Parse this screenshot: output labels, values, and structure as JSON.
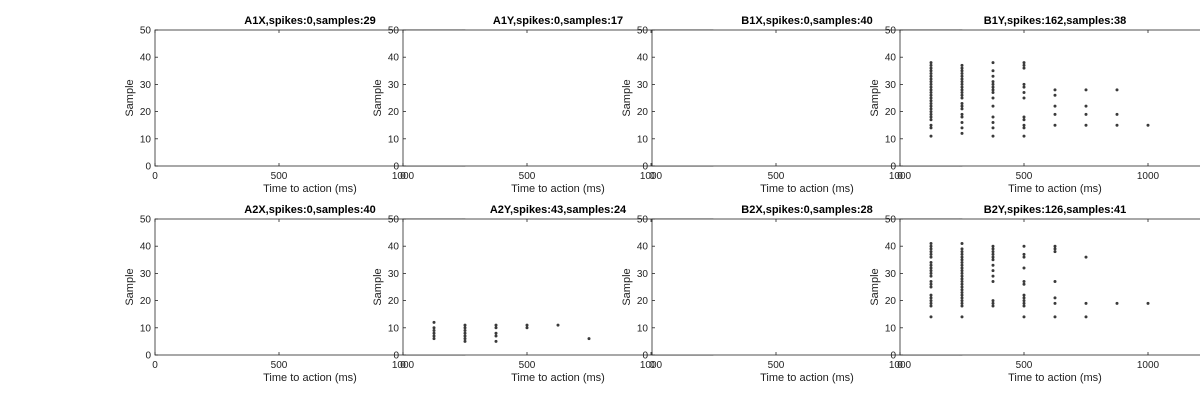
{
  "chart_data": [
    {
      "type": "scatter",
      "title": "A1X,spikes:0,samples:29",
      "xlabel": "Time to action (ms)",
      "ylabel": "Sample",
      "xlim": [
        0,
        1250
      ],
      "ylim": [
        0,
        50
      ],
      "xticks": [
        0,
        500,
        1000
      ],
      "yticks": [
        0,
        10,
        20,
        30,
        40,
        50
      ],
      "points": []
    },
    {
      "type": "scatter",
      "title": "A1Y,spikes:0,samples:17",
      "xlabel": "Time to action (ms)",
      "ylabel": "Sample",
      "xlim": [
        0,
        1250
      ],
      "ylim": [
        0,
        50
      ],
      "xticks": [
        0,
        500,
        1000
      ],
      "yticks": [
        0,
        10,
        20,
        30,
        40,
        50
      ],
      "points": []
    },
    {
      "type": "scatter",
      "title": "B1X,spikes:0,samples:40",
      "xlabel": "Time to action (ms)",
      "ylabel": "Sample",
      "xlim": [
        0,
        1250
      ],
      "ylim": [
        0,
        50
      ],
      "xticks": [
        0,
        500,
        1000
      ],
      "yticks": [
        0,
        10,
        20,
        30,
        40,
        50
      ],
      "points": []
    },
    {
      "type": "scatter",
      "title": "B1Y,spikes:162,samples:38",
      "xlabel": "Time to action (ms)",
      "ylabel": "Sample",
      "xlim": [
        0,
        1250
      ],
      "ylim": [
        0,
        50
      ],
      "xticks": [
        0,
        500,
        1000
      ],
      "yticks": [
        0,
        10,
        20,
        30,
        40,
        50
      ],
      "points": [
        [
          125,
          11
        ],
        [
          125,
          14
        ],
        [
          125,
          15
        ],
        [
          125,
          17
        ],
        [
          125,
          18
        ],
        [
          125,
          19
        ],
        [
          125,
          20
        ],
        [
          125,
          21
        ],
        [
          125,
          22
        ],
        [
          125,
          23
        ],
        [
          125,
          24
        ],
        [
          125,
          25
        ],
        [
          125,
          26
        ],
        [
          125,
          27
        ],
        [
          125,
          28
        ],
        [
          125,
          29
        ],
        [
          125,
          30
        ],
        [
          125,
          31
        ],
        [
          125,
          32
        ],
        [
          125,
          33
        ],
        [
          125,
          34
        ],
        [
          125,
          35
        ],
        [
          125,
          36
        ],
        [
          125,
          37
        ],
        [
          125,
          38
        ],
        [
          250,
          12
        ],
        [
          250,
          14
        ],
        [
          250,
          16
        ],
        [
          250,
          18
        ],
        [
          250,
          19
        ],
        [
          250,
          21
        ],
        [
          250,
          22
        ],
        [
          250,
          23
        ],
        [
          250,
          25
        ],
        [
          250,
          26
        ],
        [
          250,
          27
        ],
        [
          250,
          28
        ],
        [
          250,
          29
        ],
        [
          250,
          30
        ],
        [
          250,
          31
        ],
        [
          250,
          32
        ],
        [
          250,
          33
        ],
        [
          250,
          34
        ],
        [
          250,
          35
        ],
        [
          250,
          36
        ],
        [
          250,
          37
        ],
        [
          375,
          11
        ],
        [
          375,
          14
        ],
        [
          375,
          16
        ],
        [
          375,
          18
        ],
        [
          375,
          22
        ],
        [
          375,
          25
        ],
        [
          375,
          27
        ],
        [
          375,
          28
        ],
        [
          375,
          29
        ],
        [
          375,
          30
        ],
        [
          375,
          31
        ],
        [
          375,
          33
        ],
        [
          375,
          35
        ],
        [
          375,
          38
        ],
        [
          500,
          11
        ],
        [
          500,
          14
        ],
        [
          500,
          15
        ],
        [
          500,
          17
        ],
        [
          500,
          18
        ],
        [
          500,
          25
        ],
        [
          500,
          27
        ],
        [
          500,
          29
        ],
        [
          500,
          30
        ],
        [
          500,
          36
        ],
        [
          500,
          37
        ],
        [
          500,
          38
        ],
        [
          625,
          15
        ],
        [
          625,
          19
        ],
        [
          625,
          22
        ],
        [
          625,
          26
        ],
        [
          625,
          28
        ],
        [
          750,
          15
        ],
        [
          750,
          19
        ],
        [
          750,
          22
        ],
        [
          750,
          28
        ],
        [
          875,
          15
        ],
        [
          875,
          19
        ],
        [
          875,
          28
        ],
        [
          1000,
          15
        ]
      ]
    },
    {
      "type": "scatter",
      "title": "A2X,spikes:0,samples:40",
      "xlabel": "Time to action (ms)",
      "ylabel": "Sample",
      "xlim": [
        0,
        1250
      ],
      "ylim": [
        0,
        50
      ],
      "xticks": [
        0,
        500,
        1000
      ],
      "yticks": [
        0,
        10,
        20,
        30,
        40,
        50
      ],
      "points": []
    },
    {
      "type": "scatter",
      "title": "A2Y,spikes:43,samples:24",
      "xlabel": "Time to action (ms)",
      "ylabel": "Sample",
      "xlim": [
        0,
        1250
      ],
      "ylim": [
        0,
        50
      ],
      "xticks": [
        0,
        500,
        1000
      ],
      "yticks": [
        0,
        10,
        20,
        30,
        40,
        50
      ],
      "points": [
        [
          125,
          6
        ],
        [
          125,
          7
        ],
        [
          125,
          8
        ],
        [
          125,
          9
        ],
        [
          125,
          10
        ],
        [
          125,
          12
        ],
        [
          250,
          5
        ],
        [
          250,
          6
        ],
        [
          250,
          7
        ],
        [
          250,
          8
        ],
        [
          250,
          9
        ],
        [
          250,
          10
        ],
        [
          250,
          11
        ],
        [
          375,
          5
        ],
        [
          375,
          7
        ],
        [
          375,
          8
        ],
        [
          375,
          10
        ],
        [
          375,
          11
        ],
        [
          500,
          10
        ],
        [
          500,
          11
        ],
        [
          625,
          11
        ],
        [
          750,
          6
        ]
      ]
    },
    {
      "type": "scatter",
      "title": "B2X,spikes:0,samples:28",
      "xlabel": "Time to action (ms)",
      "ylabel": "Sample",
      "xlim": [
        0,
        1250
      ],
      "ylim": [
        0,
        50
      ],
      "xticks": [
        0,
        500,
        1000
      ],
      "yticks": [
        0,
        10,
        20,
        30,
        40,
        50
      ],
      "points": []
    },
    {
      "type": "scatter",
      "title": "B2Y,spikes:126,samples:41",
      "xlabel": "Time to action (ms)",
      "ylabel": "Sample",
      "xlim": [
        0,
        1250
      ],
      "ylim": [
        0,
        50
      ],
      "xticks": [
        0,
        500,
        1000
      ],
      "yticks": [
        0,
        10,
        20,
        30,
        40,
        50
      ],
      "points": [
        [
          125,
          14
        ],
        [
          125,
          18
        ],
        [
          125,
          19
        ],
        [
          125,
          20
        ],
        [
          125,
          21
        ],
        [
          125,
          22
        ],
        [
          125,
          25
        ],
        [
          125,
          26
        ],
        [
          125,
          27
        ],
        [
          125,
          29
        ],
        [
          125,
          30
        ],
        [
          125,
          31
        ],
        [
          125,
          32
        ],
        [
          125,
          33
        ],
        [
          125,
          34
        ],
        [
          125,
          36
        ],
        [
          125,
          37
        ],
        [
          125,
          38
        ],
        [
          125,
          39
        ],
        [
          125,
          40
        ],
        [
          125,
          41
        ],
        [
          250,
          14
        ],
        [
          250,
          18
        ],
        [
          250,
          19
        ],
        [
          250,
          20
        ],
        [
          250,
          21
        ],
        [
          250,
          22
        ],
        [
          250,
          23
        ],
        [
          250,
          24
        ],
        [
          250,
          25
        ],
        [
          250,
          26
        ],
        [
          250,
          27
        ],
        [
          250,
          28
        ],
        [
          250,
          29
        ],
        [
          250,
          30
        ],
        [
          250,
          31
        ],
        [
          250,
          32
        ],
        [
          250,
          33
        ],
        [
          250,
          34
        ],
        [
          250,
          35
        ],
        [
          250,
          36
        ],
        [
          250,
          37
        ],
        [
          250,
          38
        ],
        [
          250,
          39
        ],
        [
          250,
          41
        ],
        [
          375,
          18
        ],
        [
          375,
          19
        ],
        [
          375,
          20
        ],
        [
          375,
          27
        ],
        [
          375,
          29
        ],
        [
          375,
          31
        ],
        [
          375,
          33
        ],
        [
          375,
          35
        ],
        [
          375,
          36
        ],
        [
          375,
          37
        ],
        [
          375,
          38
        ],
        [
          375,
          39
        ],
        [
          375,
          40
        ],
        [
          500,
          14
        ],
        [
          500,
          18
        ],
        [
          500,
          19
        ],
        [
          500,
          20
        ],
        [
          500,
          21
        ],
        [
          500,
          22
        ],
        [
          500,
          26
        ],
        [
          500,
          27
        ],
        [
          500,
          32
        ],
        [
          500,
          36
        ],
        [
          500,
          37
        ],
        [
          500,
          40
        ],
        [
          625,
          14
        ],
        [
          625,
          19
        ],
        [
          625,
          21
        ],
        [
          625,
          27
        ],
        [
          625,
          38
        ],
        [
          625,
          39
        ],
        [
          625,
          40
        ],
        [
          750,
          14
        ],
        [
          750,
          19
        ],
        [
          750,
          36
        ],
        [
          875,
          19
        ],
        [
          1000,
          19
        ]
      ]
    }
  ]
}
